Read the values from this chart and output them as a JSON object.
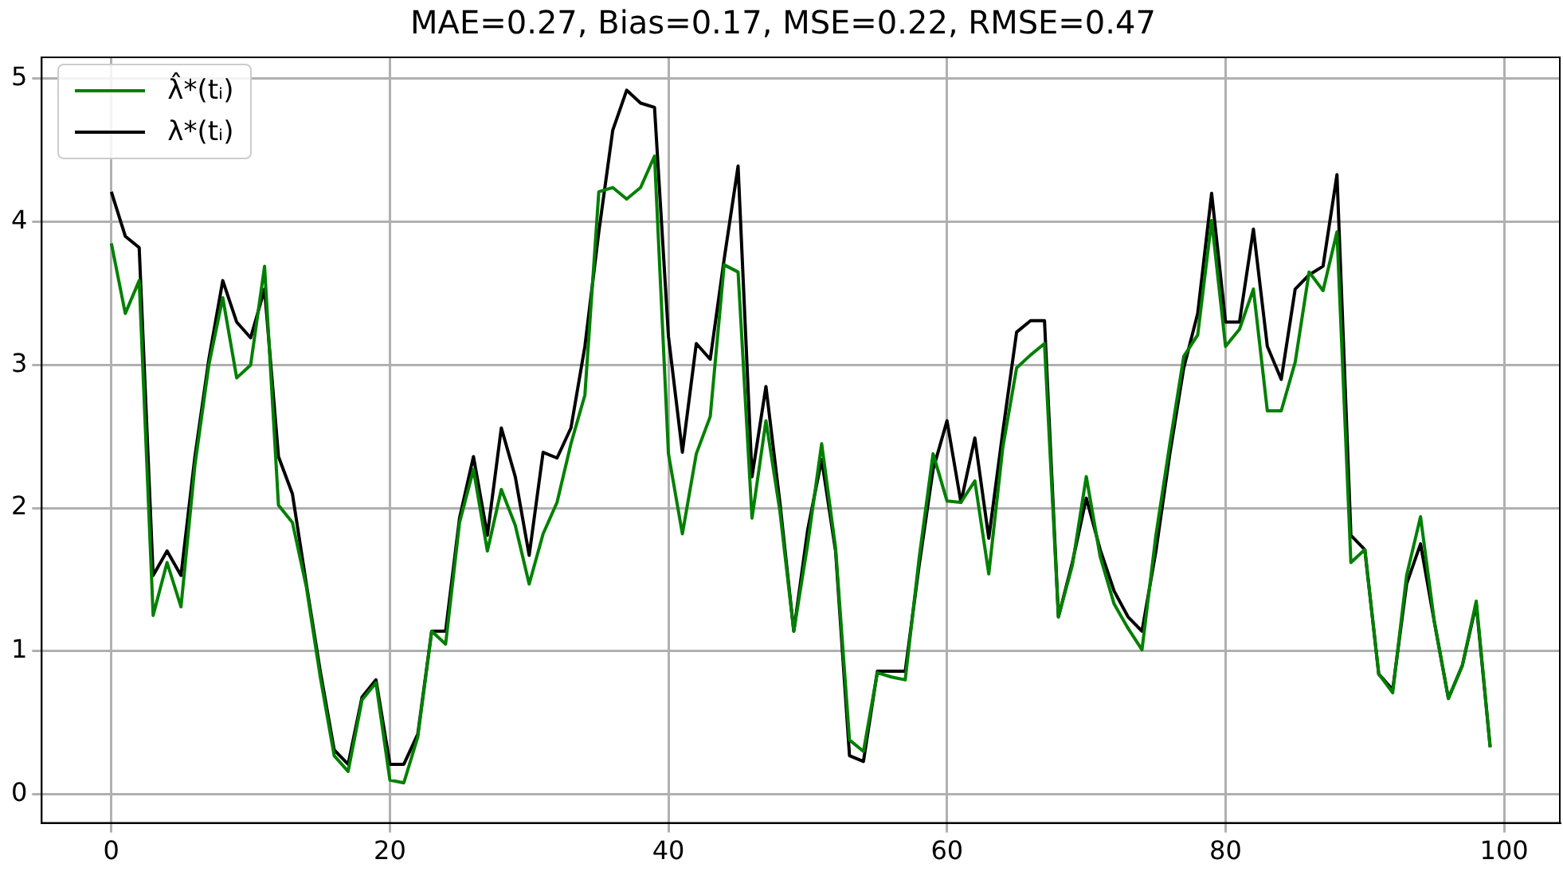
{
  "chart_data": {
    "type": "line",
    "title": "MAE=0.27, Bias=0.17, MSE=0.22, RMSE=0.47",
    "x": [
      0,
      1,
      2,
      3,
      4,
      5,
      6,
      7,
      8,
      9,
      10,
      11,
      12,
      13,
      14,
      15,
      16,
      17,
      18,
      19,
      20,
      21,
      22,
      23,
      24,
      25,
      26,
      27,
      28,
      29,
      30,
      31,
      32,
      33,
      34,
      35,
      36,
      37,
      38,
      39,
      40,
      41,
      42,
      43,
      44,
      45,
      46,
      47,
      48,
      49,
      50,
      51,
      52,
      53,
      54,
      55,
      56,
      57,
      58,
      59,
      60,
      61,
      62,
      63,
      64,
      65,
      66,
      67,
      68,
      69,
      70,
      71,
      72,
      73,
      74,
      75,
      76,
      77,
      78,
      79,
      80,
      81,
      82,
      83,
      84,
      85,
      86,
      87,
      88,
      89,
      90,
      91,
      92,
      93,
      94,
      95,
      96,
      97,
      98,
      99
    ],
    "series": [
      {
        "name": "λ̂*(tᵢ)",
        "color": "#008000",
        "values": [
          3.85,
          3.36,
          3.59,
          1.25,
          1.62,
          1.31,
          2.3,
          3.0,
          3.47,
          2.91,
          3.0,
          3.69,
          2.02,
          1.9,
          1.45,
          0.82,
          0.27,
          0.16,
          0.66,
          0.78,
          0.1,
          0.08,
          0.4,
          1.14,
          1.05,
          1.9,
          2.27,
          1.7,
          2.13,
          1.88,
          1.47,
          1.82,
          2.04,
          2.45,
          2.79,
          4.21,
          4.24,
          4.16,
          4.24,
          4.46,
          2.38,
          1.82,
          2.38,
          2.64,
          3.7,
          3.65,
          1.93,
          2.61,
          1.98,
          1.14,
          1.75,
          2.45,
          1.72,
          0.38,
          0.3,
          0.85,
          0.82,
          0.8,
          1.65,
          2.38,
          2.05,
          2.04,
          2.19,
          1.54,
          2.42,
          2.98,
          3.07,
          3.15,
          1.24,
          1.6,
          2.22,
          1.66,
          1.33,
          1.16,
          1.01,
          1.81,
          2.45,
          3.06,
          3.21,
          4.01,
          3.13,
          3.25,
          3.53,
          2.68,
          2.68,
          3.02,
          3.65,
          3.52,
          3.93,
          1.62,
          1.71,
          0.84,
          0.71,
          1.53,
          1.94,
          1.2,
          0.67,
          0.9,
          1.35,
          0.33
        ]
      },
      {
        "name": "λ*(tᵢ)",
        "color": "#000000",
        "values": [
          4.21,
          3.9,
          3.82,
          1.53,
          1.7,
          1.53,
          2.36,
          3.04,
          3.59,
          3.3,
          3.19,
          3.53,
          2.36,
          2.1,
          1.47,
          0.86,
          0.31,
          0.21,
          0.68,
          0.8,
          0.21,
          0.21,
          0.42,
          1.14,
          1.14,
          1.93,
          2.36,
          1.81,
          2.56,
          2.22,
          1.67,
          2.39,
          2.35,
          2.56,
          3.13,
          3.93,
          4.64,
          4.92,
          4.83,
          4.8,
          3.2,
          2.39,
          3.15,
          3.04,
          3.74,
          4.39,
          2.22,
          2.85,
          2.04,
          1.14,
          1.85,
          2.34,
          1.7,
          0.27,
          0.23,
          0.86,
          0.86,
          0.86,
          1.6,
          2.27,
          2.61,
          2.04,
          2.49,
          1.79,
          2.53,
          3.23,
          3.31,
          3.31,
          1.24,
          1.62,
          2.07,
          1.71,
          1.42,
          1.24,
          1.14,
          1.7,
          2.38,
          2.98,
          3.36,
          4.2,
          3.3,
          3.3,
          3.95,
          3.13,
          2.9,
          3.53,
          3.63,
          3.69,
          4.33,
          1.81,
          1.71,
          0.84,
          0.73,
          1.47,
          1.75,
          1.2,
          0.67,
          0.9,
          1.33,
          0.33
        ]
      }
    ],
    "xlim": [
      -5,
      104
    ],
    "xticks": [
      0,
      20,
      40,
      60,
      80,
      100
    ],
    "ylim": [
      -0.2,
      5.15
    ],
    "yticks": [
      0,
      1,
      2,
      3,
      4,
      5
    ],
    "grid": true,
    "legend": "top left",
    "marker": "none",
    "line_style": "solid"
  }
}
